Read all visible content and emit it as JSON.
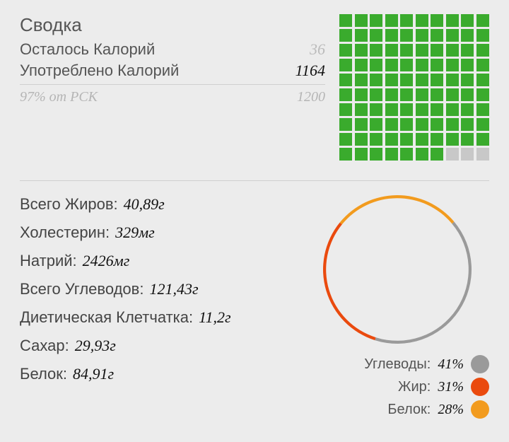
{
  "summary": {
    "title": "Сводка",
    "remaining_label": "Осталось Калорий",
    "remaining_value": "36",
    "consumed_label": "Употреблено Калорий",
    "consumed_value": "1164",
    "pct_text": "97% от РСК",
    "rda_value": "1200"
  },
  "calorie_grid": {
    "rows": 10,
    "cols": 10,
    "filled": 97,
    "filled_color": "#3aab2d",
    "empty_color": "#c8c8c8"
  },
  "nutrients": [
    {
      "label": "Всего Жиров:",
      "value": "40,89г"
    },
    {
      "label": "Холестерин:",
      "value": "329мг"
    },
    {
      "label": "Натрий:",
      "value": "2426мг"
    },
    {
      "label": "Всего Углеводов:",
      "value": "121,43г"
    },
    {
      "label": "Диетическая Клетчатка:",
      "value": "11,2г"
    },
    {
      "label": "Сахар:",
      "value": "29,93г"
    },
    {
      "label": "Белок:",
      "value": "84,91г"
    }
  ],
  "donut": {
    "type": "donut",
    "inner_radius_pct": 48,
    "background_color": "#ececec",
    "slices": [
      {
        "label": "Углеводы",
        "pct": 41,
        "color": "#9a9a9a"
      },
      {
        "label": "Жир",
        "pct": 31,
        "color": "#ea4a0e"
      },
      {
        "label": "Белок",
        "pct": 28,
        "color": "#f29b1e"
      }
    ],
    "start_angle_deg": -40
  },
  "legend": [
    {
      "label": "Углеводы:",
      "pct": "41%",
      "color": "#9a9a9a"
    },
    {
      "label": "Жир:",
      "pct": "31%",
      "color": "#ea4a0e"
    },
    {
      "label": "Белок:",
      "pct": "28%",
      "color": "#f29b1e"
    }
  ]
}
